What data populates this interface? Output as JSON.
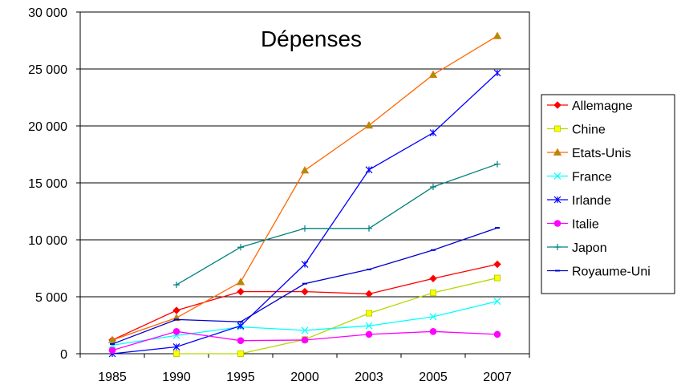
{
  "chart_data": {
    "type": "line",
    "title": "Dépenses",
    "xlabel": "",
    "ylabel": "",
    "categories": [
      "1985",
      "1990",
      "1995",
      "2000",
      "2003",
      "2005",
      "2007"
    ],
    "ylim": [
      0,
      30000
    ],
    "yticks": [
      0,
      5000,
      10000,
      15000,
      20000,
      25000,
      30000
    ],
    "ytick_labels": [
      "0",
      "5 000",
      "10 000",
      "15 000",
      "20 000",
      "25 000",
      "30 000"
    ],
    "grid": true,
    "legend_position": "right",
    "series": [
      {
        "name": "Allemagne",
        "color": "#ff0000",
        "marker": "diamond",
        "values": [
          1200,
          3800,
          5450,
          5450,
          5250,
          6600,
          7850
        ]
      },
      {
        "name": "Chine",
        "color": "#b5d800",
        "marker": "square",
        "values": [
          null,
          0,
          0,
          1250,
          3550,
          5350,
          6650
        ]
      },
      {
        "name": "Etats-Unis",
        "color": "#ff6600",
        "marker": "triangle",
        "values": [
          1200,
          3150,
          6300,
          16100,
          20050,
          24500,
          27900
        ]
      },
      {
        "name": "France",
        "color": "#00ffff",
        "marker": "x",
        "values": [
          750,
          1600,
          2350,
          2050,
          2450,
          3250,
          4600
        ]
      },
      {
        "name": "Irlande",
        "color": "#0000ff",
        "marker": "star",
        "values": [
          0,
          600,
          2450,
          7850,
          16150,
          19400,
          24650
        ]
      },
      {
        "name": "Italie",
        "color": "#ff00ff",
        "marker": "circle",
        "values": [
          300,
          1950,
          1150,
          1200,
          1700,
          1950,
          1700
        ]
      },
      {
        "name": "Japon",
        "color": "#008080",
        "marker": "plus",
        "values": [
          null,
          6050,
          9350,
          11000,
          11000,
          14650,
          16650
        ]
      },
      {
        "name": "Royaume-Uni",
        "color": "#0000cc",
        "marker": "dash",
        "values": [
          850,
          3000,
          2800,
          6150,
          7400,
          9100,
          11050
        ]
      }
    ]
  }
}
